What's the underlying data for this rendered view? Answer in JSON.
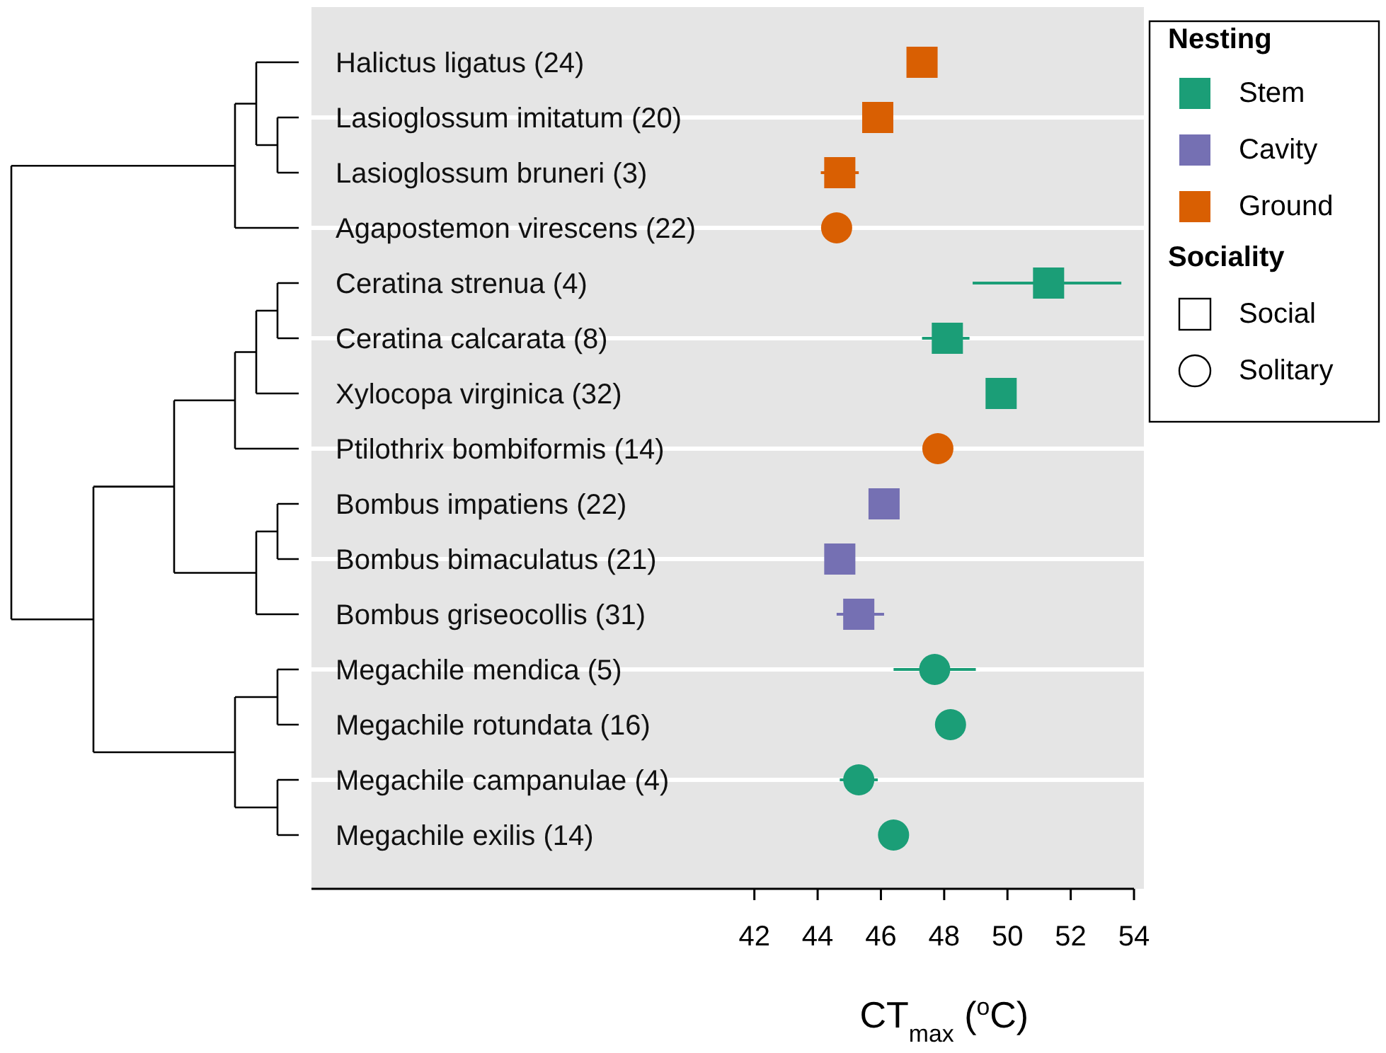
{
  "chart_data": {
    "type": "scatter",
    "orientation": "horizontal",
    "xlabel": "CT$_{max}$ ($^{o}$C)",
    "categories": [
      "Halictus ligatus (24)",
      "Lasioglossum imitatum (20)",
      "Lasioglossum bruneri (3)",
      "Agapostemon virescens (22)",
      "Ceratina strenua (4)",
      "Ceratina calcarata (8)",
      "Xylocopa virginica (32)",
      "Ptilothrix bombiformis (14)",
      "Bombus impatiens (22)",
      "Bombus bimaculatus (21)",
      "Bombus griseocollis (31)",
      "Megachile mendica (5)",
      "Megachile rotundata (16)",
      "Megachile campanulae (4)",
      "Megachile exilis (14)"
    ],
    "xlim": [
      28,
      54
    ],
    "xticks": [
      42,
      44,
      46,
      48,
      50,
      52,
      54
    ],
    "grid": "y",
    "legend": "top right",
    "legend_title": [
      "Nesting",
      "Sociality"
    ],
    "annotations": [
      "Social",
      "Solitary"
    ],
    "series": [
      {
        "name": "Stem",
        "color": "#1b9e77",
        "marker": "square",
        "values": [
          null,
          null,
          null,
          null,
          51.3,
          48.1,
          49.8,
          null,
          null,
          null,
          null,
          null,
          null,
          null,
          null
        ],
        "errors": [
          null,
          null,
          null,
          null,
          [
            48.9,
            53.6
          ],
          [
            47.3,
            48.8
          ],
          null,
          null,
          null,
          null,
          null,
          null,
          null,
          null,
          null
        ]
      },
      {
        "color": "#1b9e77",
        "marker": "circle",
        "values": [
          null,
          null,
          null,
          null,
          null,
          null,
          null,
          null,
          null,
          null,
          null,
          47.7,
          48.2,
          45.3,
          46.4
        ],
        "errors": [
          null,
          null,
          null,
          null,
          null,
          null,
          null,
          null,
          null,
          null,
          null,
          [
            46.4,
            49.0
          ],
          null,
          [
            44.7,
            45.9
          ],
          null
        ]
      },
      {
        "name": "Cavity",
        "color": "#7570b3",
        "marker": "square",
        "values": [
          null,
          null,
          null,
          null,
          null,
          null,
          null,
          null,
          46.1,
          44.7,
          45.3,
          null,
          null,
          null,
          null
        ],
        "errors": [
          null,
          null,
          null,
          null,
          null,
          null,
          null,
          null,
          null,
          null,
          [
            44.6,
            46.1
          ],
          null,
          null,
          null,
          null
        ]
      },
      {
        "name": "Ground",
        "color": "#d95f02",
        "marker": "square",
        "values": [
          47.3,
          45.9,
          44.7,
          null,
          null,
          null,
          null,
          null,
          null,
          null,
          null,
          null,
          null,
          null,
          null
        ],
        "errors": [
          null,
          null,
          [
            44.1,
            45.3
          ],
          null,
          null,
          null,
          null,
          null,
          null,
          null,
          null,
          null,
          null,
          null,
          null
        ]
      },
      {
        "color": "#d95f02",
        "marker": "circle",
        "values": [
          null,
          null,
          null,
          44.6,
          null,
          null,
          null,
          47.8,
          null,
          null,
          null,
          null,
          null,
          null,
          null
        ]
      }
    ]
  }
}
